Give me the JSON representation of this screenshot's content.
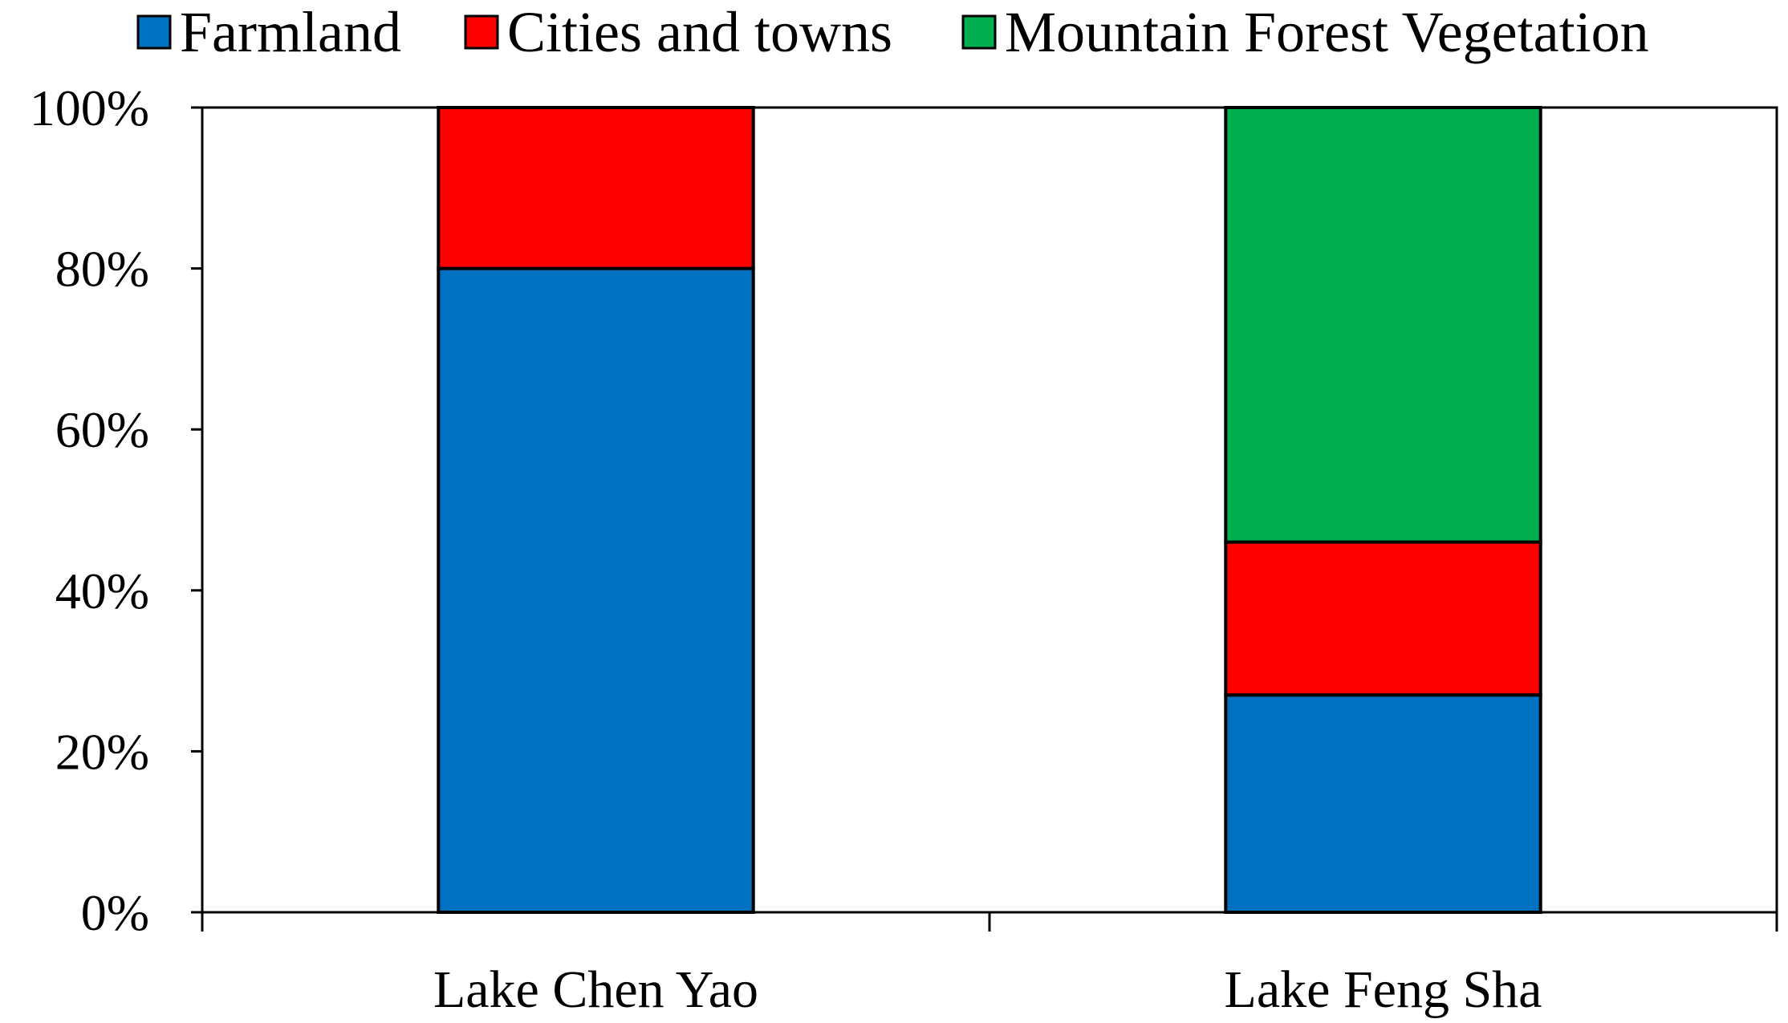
{
  "chart_data": {
    "type": "bar",
    "stacked": true,
    "percent": true,
    "categories": [
      "Lake Chen Yao",
      "Lake Feng Sha"
    ],
    "series": [
      {
        "name": "Farmland",
        "color": "#0070C0",
        "values": [
          80,
          27
        ]
      },
      {
        "name": "Cities and towns",
        "color": "#FF0000",
        "values": [
          20,
          19
        ]
      },
      {
        "name": "Mountain Forest Vegetation",
        "color": "#00B050",
        "values": [
          0,
          54
        ]
      }
    ],
    "title": "",
    "xlabel": "",
    "ylabel": "",
    "ylim": [
      0,
      100
    ],
    "yticks": [
      "0%",
      "20%",
      "40%",
      "60%",
      "80%",
      "100%"
    ],
    "grid": false,
    "legend": "top"
  }
}
